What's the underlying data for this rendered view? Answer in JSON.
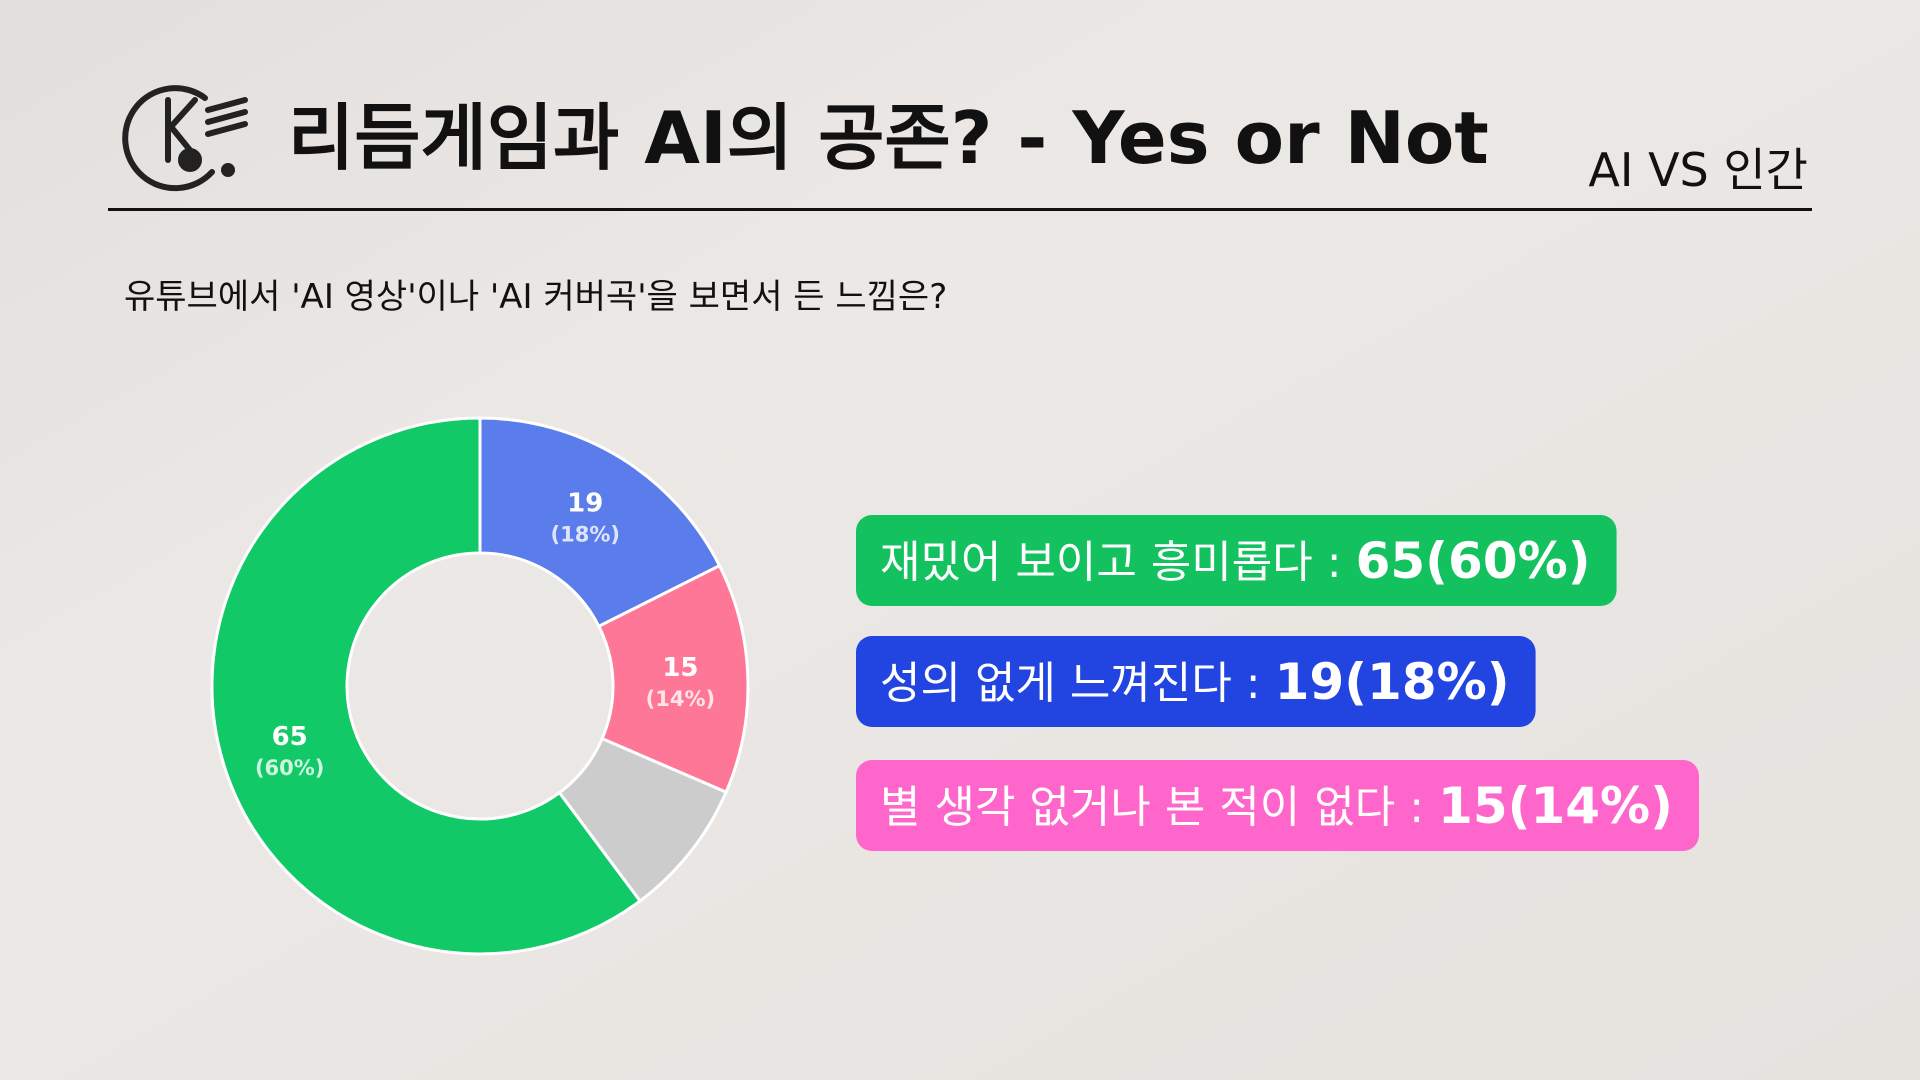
{
  "header": {
    "title": "리듬게임과 AI의 공존? - Yes or Not",
    "tag": "AI VS 인간"
  },
  "question": "유튜브에서 'AI 영상'이나 'AI 커버곡'을 보면서 든 느낌은?",
  "chart_data": {
    "type": "donut",
    "values": [
      19,
      15,
      9,
      65
    ],
    "colors": [
      "#5b7ceb",
      "#ff7796",
      "#cccccc",
      "#12c967"
    ],
    "percent_labels": [
      "(18%)",
      "(14%)",
      null,
      "(60%)"
    ],
    "legend": [
      {
        "label": "재밌어 보이고 흥미롭다 :",
        "value_label": "65(60%)",
        "color": "#13c25f"
      },
      {
        "label": "성의 없게 느껴진다 :",
        "value_label": "19(18%)",
        "color": "#2244e0"
      },
      {
        "label": "별 생각 없거나 본 적이 없다 :",
        "value_label": "15(14%)",
        "color": "#ff66cc"
      }
    ]
  }
}
